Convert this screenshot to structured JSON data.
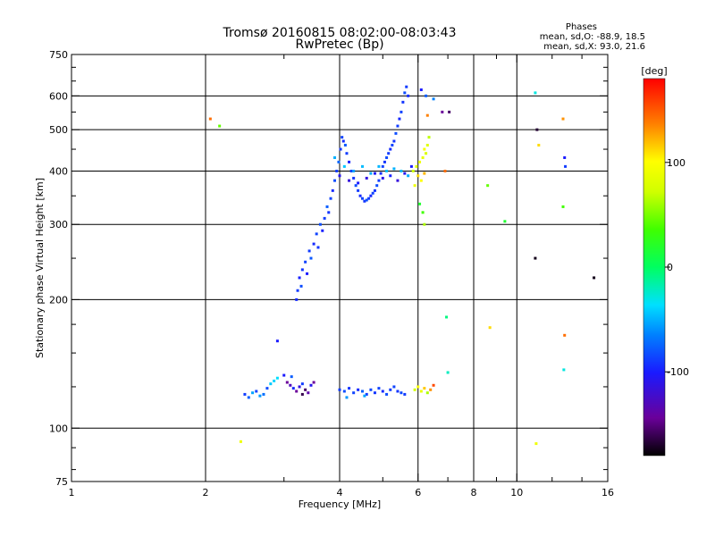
{
  "chart_data": {
    "type": "scatter",
    "title": "Tromsø 20160815 08:02:00-08:03:43",
    "subtitle": "RwPretec (Bp)",
    "info": {
      "heading": "Phases",
      "line_o": "mean, sd,O: -88.9, 18.5",
      "line_x": "mean, sd,X:  93.0, 21.6"
    },
    "xlabel": "Frequency [MHz]",
    "ylabel": "Stationary phase Virtual Height [km]",
    "x_scale": "log",
    "y_scale": "log",
    "xlim": [
      1,
      16
    ],
    "ylim": [
      75,
      750
    ],
    "x_ticks": [
      1,
      2,
      4,
      6,
      8,
      10,
      16
    ],
    "x_tick_labels": [
      "1",
      "2",
      "4",
      "6",
      "8",
      "10",
      "16"
    ],
    "x_minor_ticks": [
      3,
      5,
      7,
      9,
      12,
      14
    ],
    "y_ticks": [
      75,
      100,
      200,
      300,
      400,
      500,
      600,
      750
    ],
    "y_tick_labels": [
      "75",
      "100",
      "200",
      "300",
      "400",
      "500",
      "600",
      "750"
    ],
    "y_minor_ticks": [
      80,
      90,
      125,
      150,
      175,
      250,
      350,
      450,
      550,
      650,
      700
    ],
    "grid_x": [
      2,
      4,
      6,
      8,
      10
    ],
    "grid_y": [
      100,
      200,
      300,
      400,
      500,
      600
    ],
    "colorbar": {
      "label": "[deg]",
      "range": [
        -180,
        180
      ],
      "ticks": [
        100,
        0,
        -100
      ],
      "tick_labels": [
        "100",
        "0",
        "-100"
      ],
      "colormap": "rainbow"
    },
    "series": [
      {
        "points": [
          [
            3.2,
            200,
            -115
          ],
          [
            3.22,
            210,
            -110
          ],
          [
            3.25,
            225,
            -118
          ],
          [
            3.28,
            215,
            -105
          ],
          [
            3.3,
            235,
            -112
          ],
          [
            3.35,
            245,
            -108
          ],
          [
            3.38,
            230,
            -120
          ],
          [
            3.42,
            260,
            -110
          ],
          [
            3.45,
            250,
            -102
          ],
          [
            3.5,
            270,
            -115
          ],
          [
            3.55,
            285,
            -108
          ],
          [
            3.58,
            265,
            -112
          ],
          [
            3.62,
            300,
            -105
          ],
          [
            3.66,
            290,
            -118
          ],
          [
            3.7,
            310,
            -110
          ],
          [
            3.75,
            330,
            -100
          ],
          [
            3.78,
            320,
            -112
          ],
          [
            3.82,
            345,
            -108
          ],
          [
            3.86,
            360,
            -115
          ],
          [
            3.9,
            380,
            -105
          ],
          [
            3.94,
            400,
            -110
          ],
          [
            3.98,
            420,
            -98
          ],
          [
            4.02,
            450,
            -112
          ],
          [
            4.05,
            480,
            -108
          ],
          [
            4.08,
            470,
            -115
          ],
          [
            4.12,
            460,
            -102
          ],
          [
            4.15,
            440,
            -110
          ],
          [
            4.2,
            420,
            -118
          ],
          [
            4.25,
            400,
            -108
          ],
          [
            4.3,
            385,
            -112
          ],
          [
            4.35,
            370,
            -105
          ],
          [
            4.4,
            360,
            -110
          ],
          [
            4.45,
            350,
            -115
          ],
          [
            4.5,
            345,
            -108
          ],
          [
            4.55,
            340,
            -112
          ],
          [
            4.6,
            342,
            -104
          ],
          [
            4.65,
            345,
            -110
          ],
          [
            4.7,
            350,
            -116
          ],
          [
            4.75,
            355,
            -108
          ],
          [
            4.8,
            360,
            -112
          ],
          [
            4.85,
            370,
            -105
          ],
          [
            4.9,
            380,
            -110
          ],
          [
            4.95,
            395,
            -114
          ],
          [
            5.0,
            410,
            -108
          ],
          [
            5.05,
            420,
            -112
          ],
          [
            5.1,
            430,
            -106
          ],
          [
            5.15,
            440,
            -110
          ],
          [
            5.2,
            450,
            -115
          ],
          [
            5.25,
            460,
            -108
          ],
          [
            5.3,
            470,
            -112
          ],
          [
            5.35,
            490,
            -105
          ],
          [
            5.4,
            510,
            -110
          ],
          [
            5.45,
            530,
            -116
          ],
          [
            5.5,
            550,
            -108
          ],
          [
            5.55,
            580,
            -112
          ],
          [
            5.6,
            610,
            -105
          ],
          [
            5.65,
            630,
            -110
          ],
          [
            5.7,
            600,
            -114
          ],
          [
            3.9,
            430,
            -70
          ],
          [
            4.1,
            410,
            -60
          ],
          [
            4.3,
            400,
            -75
          ],
          [
            4.5,
            410,
            -65
          ],
          [
            4.7,
            395,
            -72
          ],
          [
            4.9,
            410,
            -68
          ],
          [
            5.1,
            400,
            -62
          ],
          [
            5.3,
            405,
            -70
          ],
          [
            5.5,
            400,
            -66
          ],
          [
            5.7,
            390,
            -72
          ],
          [
            4.0,
            390,
            -125
          ],
          [
            4.2,
            380,
            -130
          ],
          [
            4.4,
            375,
            -120
          ],
          [
            4.6,
            385,
            -128
          ],
          [
            4.8,
            395,
            -122
          ],
          [
            5.0,
            385,
            -126
          ],
          [
            5.2,
            390,
            -118
          ],
          [
            5.4,
            380,
            -130
          ],
          [
            5.6,
            395,
            -124
          ],
          [
            5.8,
            410,
            -120
          ],
          [
            5.85,
            400,
            80
          ],
          [
            5.95,
            410,
            90
          ],
          [
            6.05,
            420,
            100
          ],
          [
            6.1,
            380,
            110
          ],
          [
            6.15,
            430,
            95
          ],
          [
            6.2,
            450,
            105
          ],
          [
            6.25,
            440,
            85
          ],
          [
            6.0,
            390,
            120
          ],
          [
            5.9,
            370,
            100
          ],
          [
            6.3,
            460,
            90
          ],
          [
            6.35,
            480,
            75
          ],
          [
            6.2,
            395,
            130
          ],
          [
            6.3,
            540,
            145
          ],
          [
            6.25,
            600,
            -100
          ],
          [
            6.1,
            620,
            -120
          ],
          [
            6.5,
            590,
            -90
          ],
          [
            6.8,
            550,
            -150
          ],
          [
            6.9,
            400,
            150
          ],
          [
            6.2,
            300,
            70
          ],
          [
            6.15,
            320,
            40
          ],
          [
            6.05,
            335,
            20
          ],
          [
            2.45,
            120,
            -110
          ],
          [
            2.5,
            118,
            -100
          ],
          [
            2.6,
            122,
            -108
          ],
          [
            2.7,
            120,
            -95
          ],
          [
            2.75,
            124,
            -105
          ],
          [
            2.8,
            127,
            -60
          ],
          [
            2.85,
            129,
            -55
          ],
          [
            2.9,
            131,
            -50
          ],
          [
            2.55,
            121,
            -75
          ],
          [
            2.65,
            119,
            -80
          ],
          [
            3.0,
            133,
            -120
          ],
          [
            3.05,
            128,
            -150
          ],
          [
            3.1,
            126,
            -140
          ],
          [
            3.15,
            124,
            -115
          ],
          [
            3.2,
            122,
            -150
          ],
          [
            3.25,
            125,
            -130
          ],
          [
            3.3,
            127,
            -110
          ],
          [
            3.35,
            123,
            -160
          ],
          [
            3.4,
            121,
            -145
          ],
          [
            3.45,
            126,
            -125
          ],
          [
            3.5,
            128,
            -150
          ],
          [
            3.12,
            132,
            -100
          ],
          [
            3.3,
            120,
            -165
          ],
          [
            4.0,
            123,
            -110
          ],
          [
            4.1,
            122,
            -105
          ],
          [
            4.2,
            124,
            -112
          ],
          [
            4.3,
            121,
            -108
          ],
          [
            4.4,
            123,
            -115
          ],
          [
            4.5,
            122,
            -100
          ],
          [
            4.6,
            120,
            -110
          ],
          [
            4.7,
            123,
            -106
          ],
          [
            4.8,
            121,
            -112
          ],
          [
            4.9,
            124,
            -108
          ],
          [
            5.0,
            122,
            -115
          ],
          [
            5.1,
            120,
            -105
          ],
          [
            5.2,
            123,
            -110
          ],
          [
            5.3,
            125,
            -108
          ],
          [
            5.4,
            122,
            -112
          ],
          [
            5.5,
            121,
            -106
          ],
          [
            5.6,
            120,
            -110
          ],
          [
            4.15,
            118,
            -80
          ],
          [
            4.55,
            119,
            -75
          ],
          [
            5.9,
            123,
            80
          ],
          [
            6.0,
            125,
            110
          ],
          [
            6.1,
            122,
            95
          ],
          [
            6.2,
            124,
            125
          ],
          [
            6.3,
            121,
            70
          ],
          [
            6.4,
            123,
            140
          ],
          [
            6.5,
            126,
            160
          ],
          [
            2.05,
            530,
            150
          ],
          [
            2.15,
            510,
            50
          ],
          [
            2.4,
            93,
            100
          ],
          [
            2.9,
            160,
            -120
          ],
          [
            6.95,
            182,
            -10
          ],
          [
            7.0,
            135,
            -30
          ],
          [
            7.05,
            550,
            -160
          ],
          [
            8.6,
            370,
            50
          ],
          [
            8.7,
            172,
            120
          ],
          [
            9.4,
            305,
            20
          ],
          [
            11.0,
            610,
            -40
          ],
          [
            11.1,
            500,
            -170
          ],
          [
            11.2,
            460,
            120
          ],
          [
            11.0,
            250,
            -175
          ],
          [
            11.05,
            92,
            100
          ],
          [
            12.7,
            530,
            140
          ],
          [
            12.8,
            430,
            -120
          ],
          [
            12.85,
            410,
            -110
          ],
          [
            12.7,
            330,
            40
          ],
          [
            12.8,
            165,
            150
          ],
          [
            12.75,
            137,
            -40
          ],
          [
            14.9,
            225,
            -175
          ]
        ]
      }
    ]
  }
}
